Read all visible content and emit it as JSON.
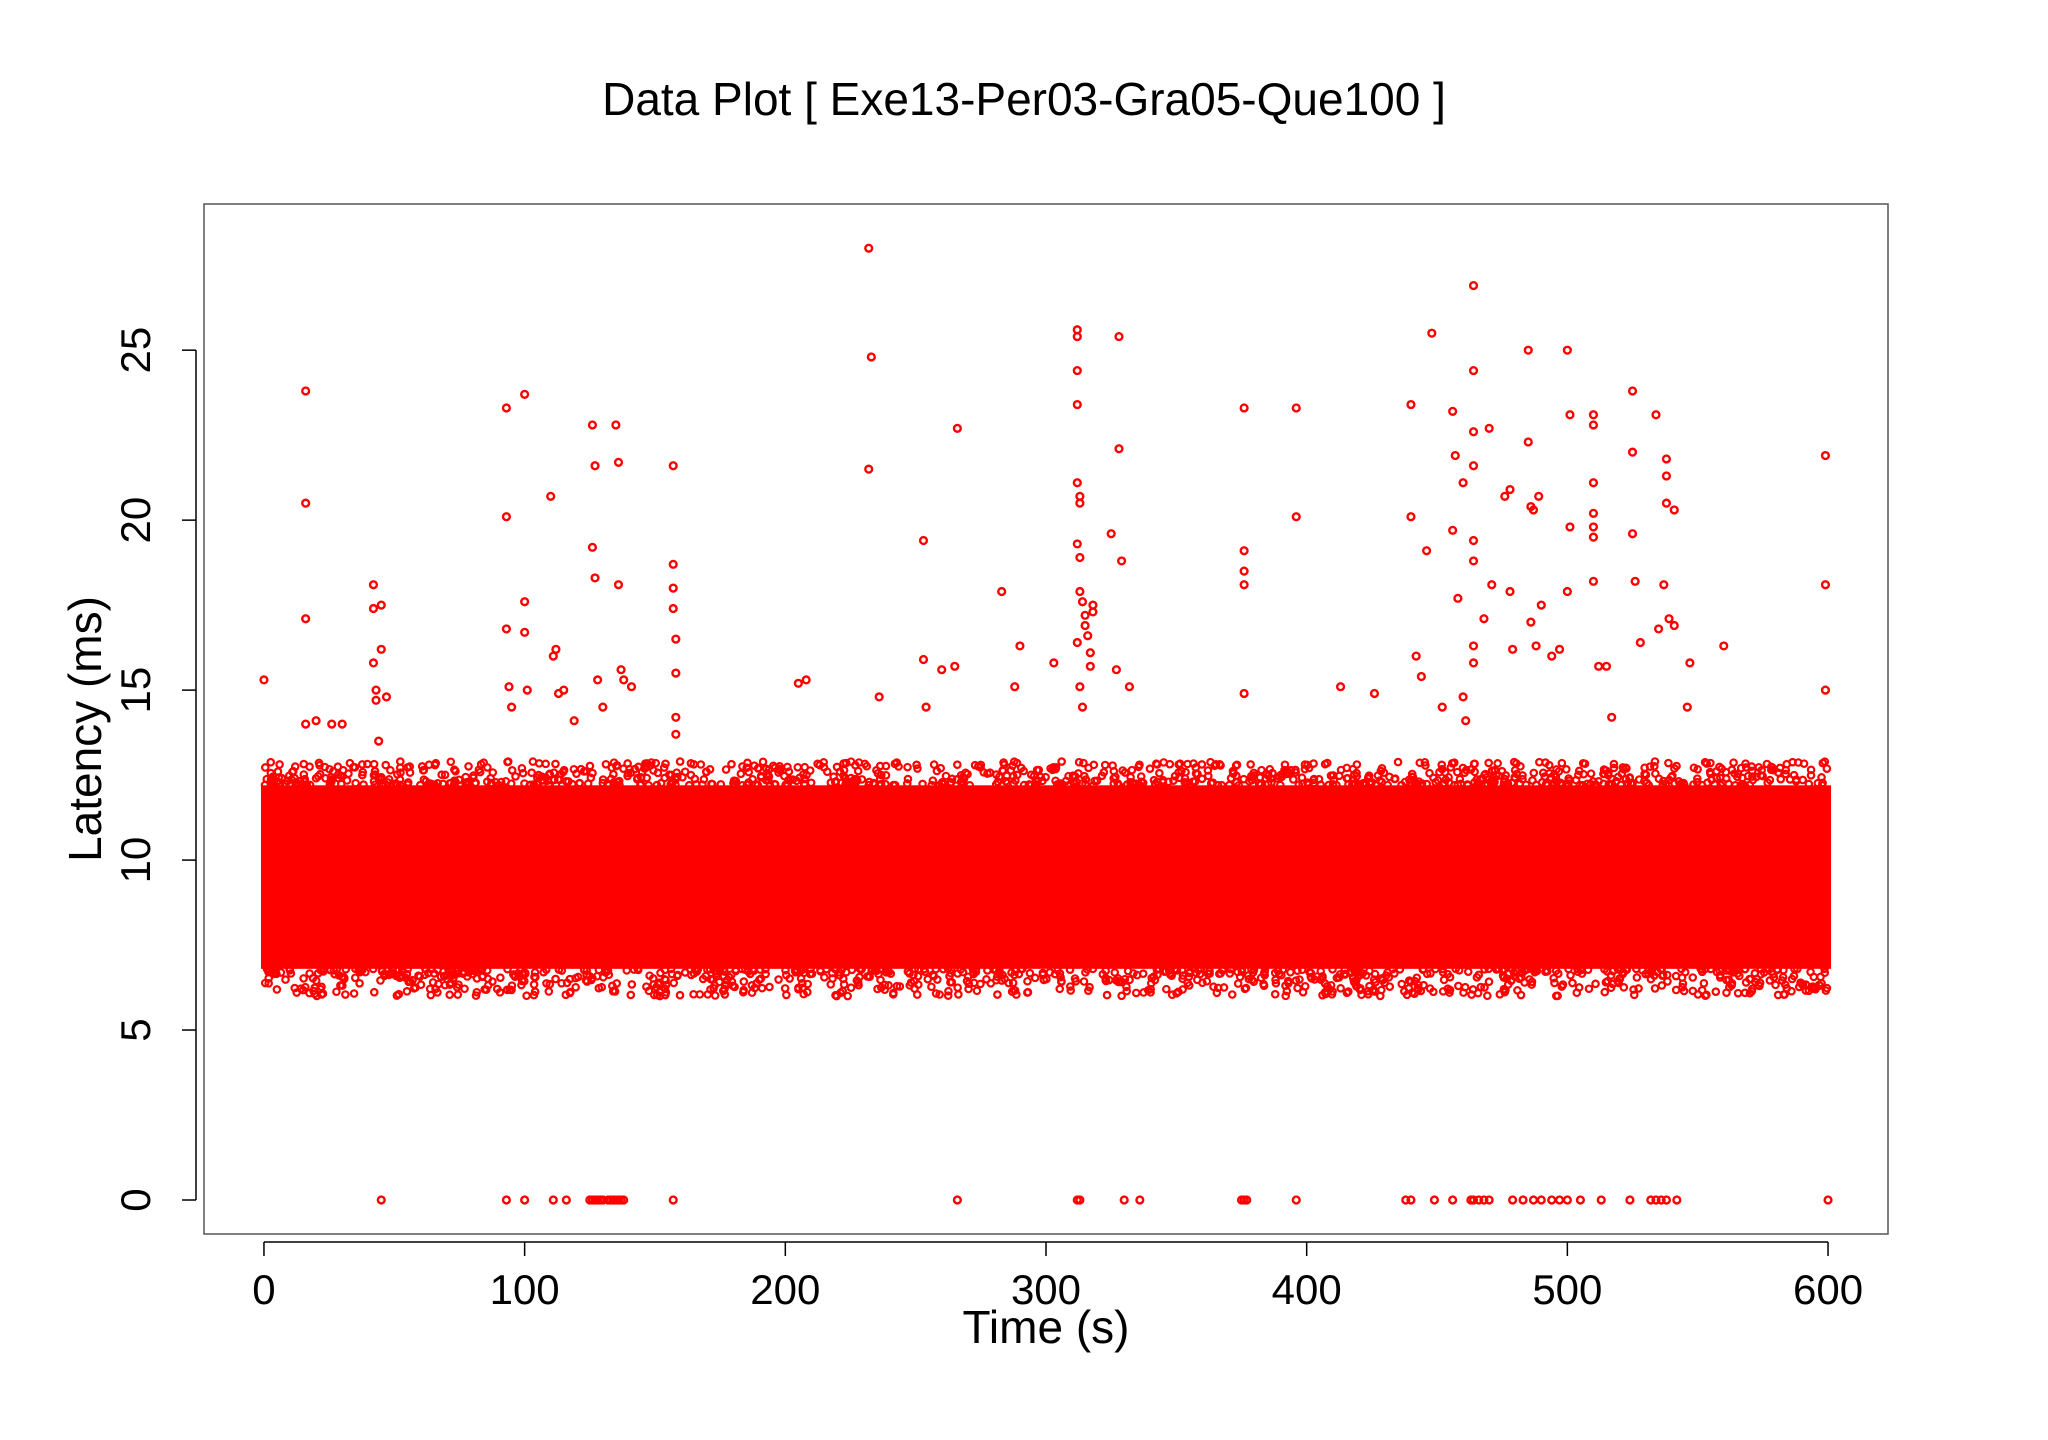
{
  "chart_data": {
    "type": "scatter",
    "title": "Data Plot [ Exe13-Per03-Gra05-Que100 ]",
    "xlabel": "Time (s)",
    "ylabel": "Latency (ms)",
    "xlim": [
      -23,
      623
    ],
    "ylim": [
      -1.0,
      29.3
    ],
    "xticks": [
      "0",
      "100",
      "200",
      "300",
      "400",
      "500",
      "600"
    ],
    "yticks": [
      "0",
      "5",
      "10",
      "15",
      "20",
      "25"
    ],
    "grid": false,
    "legend": "none",
    "marker_color": "#ff0000",
    "dense_band": {
      "x": [
        0,
        600
      ],
      "y_core": [
        6.8,
        12.2
      ],
      "y_edge": [
        6.0,
        12.9
      ]
    },
    "series": [
      {
        "values": [
          [
            0,
            15.3
          ],
          [
            16,
            23.8
          ],
          [
            16,
            20.5
          ],
          [
            16,
            17.1
          ],
          [
            16,
            14.0
          ],
          [
            20,
            14.1
          ],
          [
            26,
            14.0
          ],
          [
            30,
            14.0
          ],
          [
            42,
            18.1
          ],
          [
            42,
            17.4
          ],
          [
            42,
            15.8
          ],
          [
            43,
            15.0
          ],
          [
            43,
            14.7
          ],
          [
            44,
            13.5
          ],
          [
            45,
            17.5
          ],
          [
            45,
            16.2
          ],
          [
            47,
            14.8
          ],
          [
            93,
            23.3
          ],
          [
            93,
            20.1
          ],
          [
            93,
            16.8
          ],
          [
            94,
            15.1
          ],
          [
            95,
            14.5
          ],
          [
            100,
            23.7
          ],
          [
            100,
            17.6
          ],
          [
            100,
            16.7
          ],
          [
            101,
            15.0
          ],
          [
            110,
            20.7
          ],
          [
            111,
            16.0
          ],
          [
            112,
            16.2
          ],
          [
            113,
            14.9
          ],
          [
            115,
            15.0
          ],
          [
            119,
            14.1
          ],
          [
            126,
            22.8
          ],
          [
            126,
            19.2
          ],
          [
            127,
            21.6
          ],
          [
            127,
            18.3
          ],
          [
            128,
            15.3
          ],
          [
            130,
            14.5
          ],
          [
            135,
            22.8
          ],
          [
            136,
            21.7
          ],
          [
            136,
            18.1
          ],
          [
            137,
            15.6
          ],
          [
            138,
            15.3
          ],
          [
            141,
            15.1
          ],
          [
            157,
            21.6
          ],
          [
            157,
            18.7
          ],
          [
            157,
            18.0
          ],
          [
            157,
            17.4
          ],
          [
            158,
            16.5
          ],
          [
            158,
            15.5
          ],
          [
            158,
            14.2
          ],
          [
            158,
            13.7
          ],
          [
            205,
            15.2
          ],
          [
            208,
            15.3
          ],
          [
            232,
            28.0
          ],
          [
            233,
            24.8
          ],
          [
            232,
            21.5
          ],
          [
            236,
            14.8
          ],
          [
            253,
            19.4
          ],
          [
            253,
            15.9
          ],
          [
            254,
            14.5
          ],
          [
            260,
            15.6
          ],
          [
            265,
            15.7
          ],
          [
            266,
            22.7
          ],
          [
            283,
            17.9
          ],
          [
            290,
            16.3
          ],
          [
            288,
            15.1
          ],
          [
            303,
            15.8
          ],
          [
            312,
            25.6
          ],
          [
            312,
            25.4
          ],
          [
            312,
            24.4
          ],
          [
            312,
            23.4
          ],
          [
            312,
            21.1
          ],
          [
            313,
            20.7
          ],
          [
            313,
            20.5
          ],
          [
            312,
            19.3
          ],
          [
            313,
            18.9
          ],
          [
            313,
            17.9
          ],
          [
            314,
            17.6
          ],
          [
            315,
            17.2
          ],
          [
            315,
            16.9
          ],
          [
            316,
            16.6
          ],
          [
            317,
            16.1
          ],
          [
            317,
            15.7
          ],
          [
            318,
            17.5
          ],
          [
            318,
            17.3
          ],
          [
            312,
            16.4
          ],
          [
            313,
            15.1
          ],
          [
            314,
            14.5
          ],
          [
            325,
            19.6
          ],
          [
            327,
            15.6
          ],
          [
            328,
            25.4
          ],
          [
            328,
            22.1
          ],
          [
            329,
            18.8
          ],
          [
            332,
            15.1
          ],
          [
            376,
            23.3
          ],
          [
            376,
            19.1
          ],
          [
            376,
            18.5
          ],
          [
            376,
            18.1
          ],
          [
            376,
            14.9
          ],
          [
            396,
            23.3
          ],
          [
            396,
            20.1
          ],
          [
            413,
            15.1
          ],
          [
            426,
            14.9
          ],
          [
            440,
            23.4
          ],
          [
            440,
            20.1
          ],
          [
            442,
            16.0
          ],
          [
            444,
            15.4
          ],
          [
            446,
            19.1
          ],
          [
            448,
            25.5
          ],
          [
            452,
            14.5
          ],
          [
            456,
            23.2
          ],
          [
            456,
            19.7
          ],
          [
            457,
            21.9
          ],
          [
            458,
            17.7
          ],
          [
            460,
            21.1
          ],
          [
            460,
            14.8
          ],
          [
            461,
            14.1
          ],
          [
            464,
            26.9
          ],
          [
            464,
            24.4
          ],
          [
            464,
            22.6
          ],
          [
            464,
            21.6
          ],
          [
            464,
            19.4
          ],
          [
            464,
            18.8
          ],
          [
            464,
            16.3
          ],
          [
            464,
            15.8
          ],
          [
            468,
            17.1
          ],
          [
            470,
            22.7
          ],
          [
            471,
            18.1
          ],
          [
            476,
            20.7
          ],
          [
            478,
            20.9
          ],
          [
            478,
            17.9
          ],
          [
            479,
            16.2
          ],
          [
            485,
            25.0
          ],
          [
            485,
            22.3
          ],
          [
            486,
            20.4
          ],
          [
            487,
            20.3
          ],
          [
            489,
            20.7
          ],
          [
            486,
            17.0
          ],
          [
            488,
            16.3
          ],
          [
            490,
            17.5
          ],
          [
            494,
            16.0
          ],
          [
            497,
            16.2
          ],
          [
            500,
            25.0
          ],
          [
            501,
            23.1
          ],
          [
            501,
            19.8
          ],
          [
            500,
            17.9
          ],
          [
            510,
            23.1
          ],
          [
            510,
            22.8
          ],
          [
            510,
            21.1
          ],
          [
            510,
            20.2
          ],
          [
            510,
            19.8
          ],
          [
            510,
            19.5
          ],
          [
            510,
            18.2
          ],
          [
            512,
            15.7
          ],
          [
            515,
            15.7
          ],
          [
            517,
            14.2
          ],
          [
            525,
            23.8
          ],
          [
            525,
            22.0
          ],
          [
            525,
            19.6
          ],
          [
            526,
            18.2
          ],
          [
            528,
            16.4
          ],
          [
            534,
            23.1
          ],
          [
            535,
            16.8
          ],
          [
            538,
            21.8
          ],
          [
            538,
            21.3
          ],
          [
            538,
            20.5
          ],
          [
            537,
            18.1
          ],
          [
            539,
            17.1
          ],
          [
            541,
            20.3
          ],
          [
            541,
            16.9
          ],
          [
            546,
            14.5
          ],
          [
            547,
            15.8
          ],
          [
            560,
            16.3
          ],
          [
            599,
            21.9
          ],
          [
            599,
            18.1
          ],
          [
            599,
            15.0
          ]
        ]
      }
    ],
    "zeros_x": [
      45,
      93,
      100,
      111,
      116,
      125,
      126,
      127,
      128,
      129,
      130,
      132,
      133,
      134,
      135,
      136,
      137,
      138,
      157,
      266,
      312,
      313,
      330,
      336,
      375,
      376,
      377,
      396,
      438,
      440,
      449,
      456,
      463,
      464,
      466,
      468,
      470,
      479,
      483,
      487,
      490,
      494,
      497,
      500,
      505,
      513,
      524,
      532,
      534,
      536,
      538,
      542,
      600
    ]
  }
}
